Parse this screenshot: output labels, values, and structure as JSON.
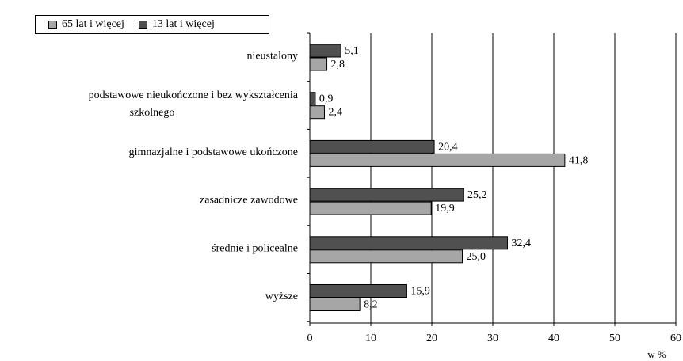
{
  "chart_data": {
    "type": "bar",
    "orientation": "horizontal",
    "categories": [
      "nieustalony",
      "podstawowe nieukończone i bez wykształcenia szkolnego",
      "gimnazjalne i podstawowe ukończone",
      "zasadnicze zawodowe",
      "średnie i policealne",
      "wyższe"
    ],
    "category_lines": [
      [
        "nieustalony"
      ],
      [
        "podstawowe nieukończone i bez wykształcenia",
        "szkolnego"
      ],
      [
        "gimnazjalne i podstawowe ukończone"
      ],
      [
        "zasadnicze zawodowe"
      ],
      [
        "średnie i policealne"
      ],
      [
        "wyższe"
      ]
    ],
    "series": [
      {
        "name": "65 lat i więcej",
        "color": "#a6a6a6",
        "values": [
          2.8,
          2.4,
          41.8,
          19.9,
          25.0,
          8.2
        ],
        "labels": [
          "2,8",
          "2,4",
          "41,8",
          "19,9",
          "25,0",
          "8,2"
        ]
      },
      {
        "name": "13 lat i więcej",
        "color": "#505050",
        "values": [
          5.1,
          0.9,
          20.4,
          25.2,
          32.4,
          15.9
        ],
        "labels": [
          "5,1",
          "0,9",
          "20,4",
          "25,2",
          "32,4",
          "15,9"
        ]
      }
    ],
    "xlim": [
      0,
      60
    ],
    "xticks": [
      0,
      10,
      20,
      30,
      40,
      50,
      60
    ],
    "xlabel": "w %",
    "grid": "vertical",
    "legend_position": "top-left"
  }
}
